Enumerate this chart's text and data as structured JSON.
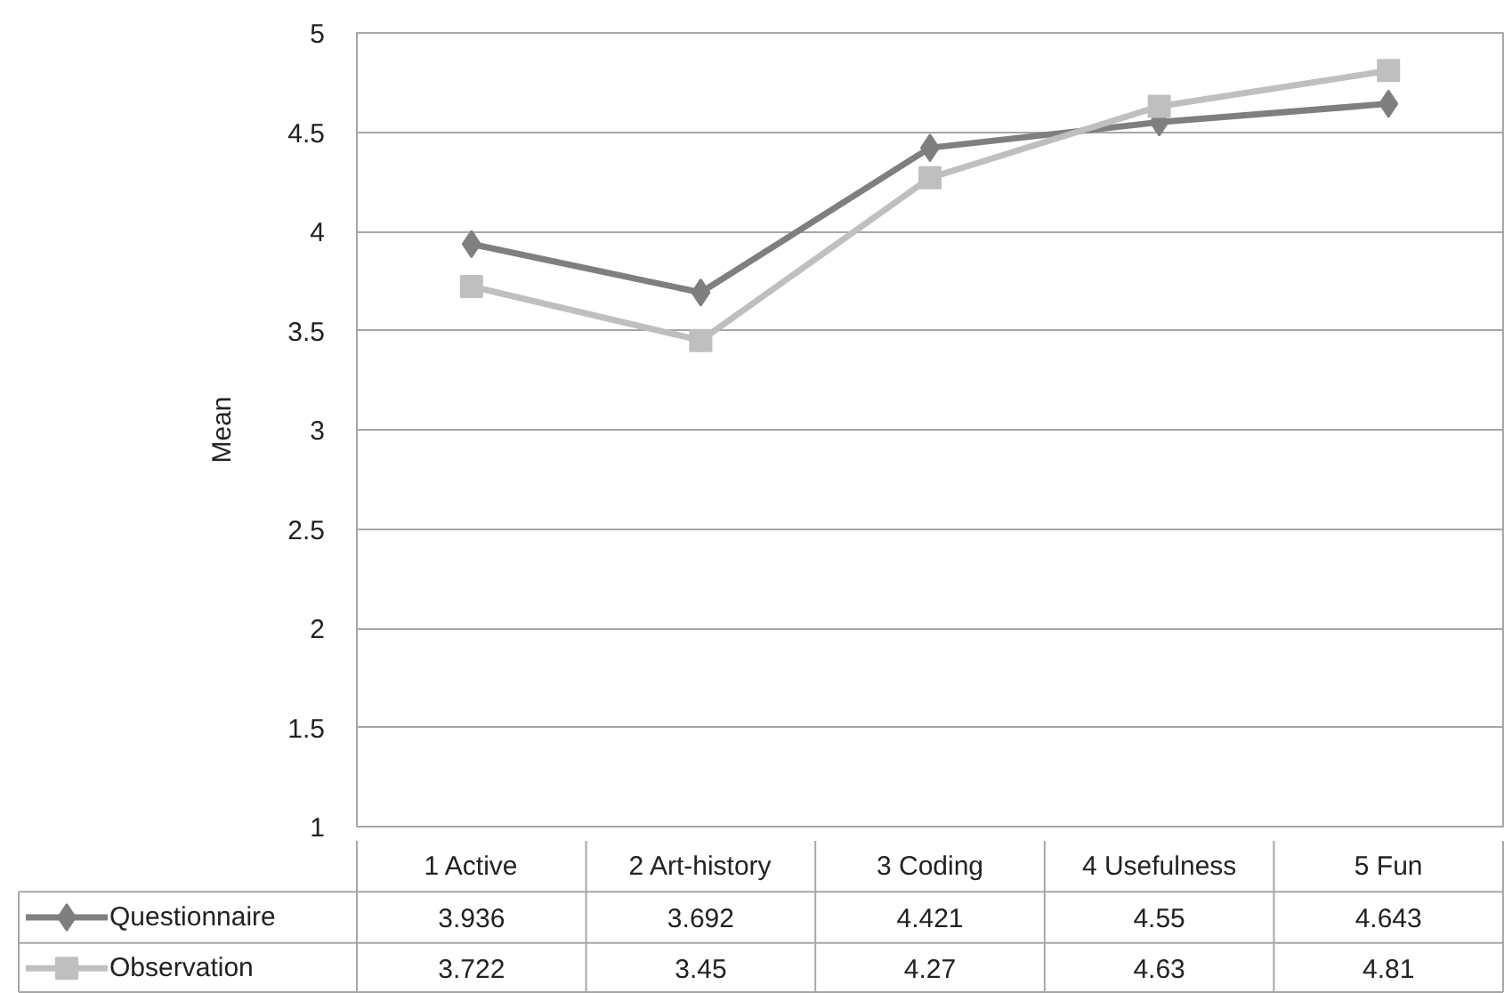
{
  "chart_data": {
    "type": "line",
    "ylabel": "Mean",
    "categories": [
      "1 Active",
      "2 Art-history",
      "3 Coding",
      "4 Usefulness",
      "5 Fun"
    ],
    "series": [
      {
        "name": "Questionnaire",
        "color": "#7f7f7f",
        "marker": "diamond",
        "values": [
          3.936,
          3.692,
          4.421,
          4.55,
          4.643
        ]
      },
      {
        "name": "Observation",
        "color": "#bfbfbf",
        "marker": "square",
        "values": [
          3.722,
          3.45,
          4.27,
          4.63,
          4.81
        ]
      }
    ],
    "ylim": [
      1,
      5
    ],
    "yticks": [
      1,
      1.5,
      2,
      2.5,
      3,
      3.5,
      4,
      4.5,
      5
    ],
    "grid": "y",
    "data_labels": true,
    "legend": "bottom"
  }
}
